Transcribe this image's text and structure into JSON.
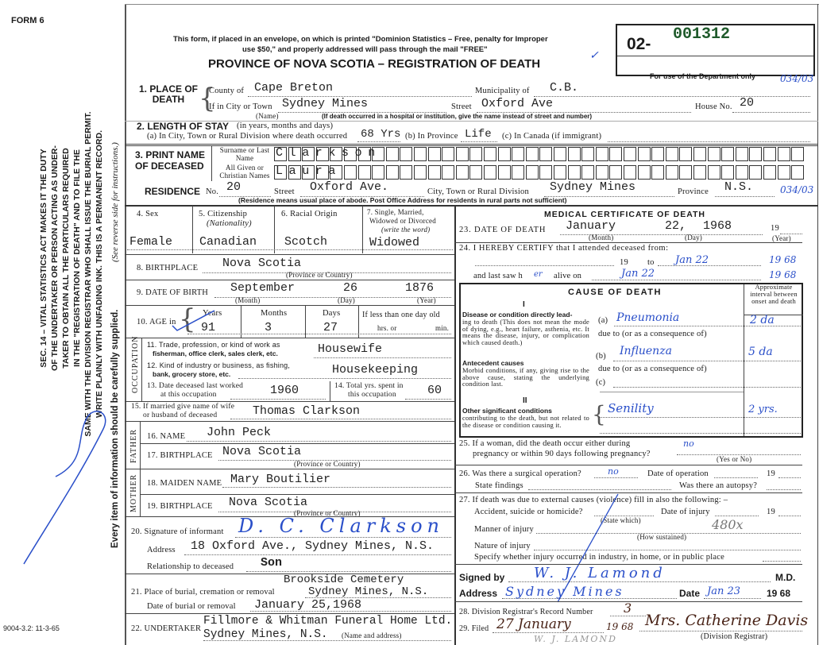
{
  "form_number": "FORM 6",
  "print_code": "9004-3.2: 11-3-65",
  "side_notice": {
    "lines": [
      "SEC. 14 – VITAL STATISTICS ACT MAKES IT THE DUTY",
      "OF THE UNDERTAKER OR PERSON ACTING AS UNDER-",
      "TAKER TO OBTAIN ALL THE PARTICULARS REQUIRED",
      "IN THE \"REGISTRATION OF DEATH\" AND TO FILE THE",
      "SAME WITH THE DIVISION REGISTRAR WHO SHALL ISSUE THE BURIAL PERMIT.",
      "WRITE PLAINLY WITH UNFADING INK. THIS IS A PERMANENT RECORD."
    ],
    "every_item": "Every item of information should be carefully supplied.",
    "see_reverse": "(See reverse side for instructions.)"
  },
  "header": {
    "mail_note_1": "This form, if placed in an envelope, on which is printed \"Dominion Statistics – Free, penalty for Improper",
    "mail_note_2": "use $50,\" and properly addressed will pass through the mail \"FREE\"",
    "title": "PROVINCE OF NOVA SCOTIA – REGISTRATION OF DEATH",
    "reg_prefix": "02-",
    "reg_number": "001312",
    "dept_only": "For use of the Department only",
    "dept_code_1": "034/03",
    "dept_code_2": "034/03"
  },
  "place_of_death": {
    "label": "1. PLACE OF DEATH",
    "county_label": "County of",
    "county": "Cape Breton",
    "municipality_label": "Municipality of",
    "municipality": "C.B.",
    "city_label": "If in City or Town",
    "city": "Sydney Mines",
    "name_note": "(Name)",
    "street_label": "Street",
    "street": "Oxford Ave",
    "house_label": "House No.",
    "house": "20",
    "hospital_note": "(If death occurred in a hospital or institution, give the name instead of street and number)"
  },
  "length_of_stay": {
    "label": "2. LENGTH OF STAY",
    "label_note": "(in years, months and days)",
    "a_label": "(a) In City, Town or Rural Division where death occurred",
    "a": "68 Yrs",
    "b_label": "(b) In Province",
    "b": "Life",
    "c_label": "(c) In Canada (if immigrant)",
    "c": ""
  },
  "deceased_name": {
    "label": "3. PRINT NAME OF DECEASED",
    "surname_label": "Surname or Last Name",
    "surname": "Clarkson",
    "given_label": "All Given or Christian Names",
    "given": "Laura"
  },
  "residence": {
    "label": "RESIDENCE",
    "no_label": "No.",
    "no": "20",
    "street_label": "Street",
    "street": "Oxford Ave.",
    "city_label": "City, Town or Rural Division",
    "city": "Sydney Mines",
    "province_label": "Province",
    "province": "N.S.",
    "note": "(Residence means usual place of abode. Post Office Address for residents in rural parts not sufficient)"
  },
  "personal": {
    "sex_label": "4. Sex",
    "sex": "Female",
    "citizenship_label": "5. Citizenship",
    "citizenship_sub": "(Nationality)",
    "citizenship": "Canadian",
    "racial_label": "6. Racial Origin",
    "racial": "Scotch",
    "marital_label_1": "7. Single, Married,",
    "marital_label_2": "Widowed or Divorced",
    "marital_label_3": "(write the word)",
    "marital": "Widowed",
    "birthplace_label": "8. BIRTHPLACE",
    "birthplace": "Nova Scotia",
    "province_or_country": "(Province or Country)",
    "dob_label": "9. DATE OF BIRTH",
    "dob_month": "September",
    "dob_day": "26",
    "dob_year": "1876",
    "month_note": "(Month)",
    "day_note": "(Day)",
    "year_note": "(Year)",
    "age_label": "10. AGE in",
    "years_label": "Years",
    "years": "91",
    "months_label": "Months",
    "months": "3",
    "days_label": "Days",
    "days": "27",
    "less_day_label": "If less than one day old",
    "hrs_label": "hrs. or",
    "min_label": "min."
  },
  "occupation": {
    "side_label": "OCCUPATION",
    "trade_label_1": "11. Trade, profession, or kind of work as",
    "trade_label_2": "fisherman, office clerk, sales clerk, etc.",
    "trade": "Housewife",
    "industry_label_1": "12. Kind of industry or business, as fishing,",
    "industry_label_2": "bank, grocery store, etc.",
    "industry": "Housekeeping",
    "last_worked_label_1": "13. Date deceased last worked",
    "last_worked_label_2": "at this occupation",
    "last_worked": "1960",
    "total_years_label_1": "14. Total yrs. spent in",
    "total_years_label_2": "this occupation",
    "total_years": "60"
  },
  "spouse": {
    "label_1": "15. If married give name of wife",
    "label_2": "or husband of deceased",
    "name": "Thomas Clarkson"
  },
  "father": {
    "side_label": "FATHER",
    "name_label": "16. NAME",
    "name": "John Peck",
    "birthplace_label": "17. BIRTHPLACE",
    "birthplace": "Nova Scotia",
    "note": "(Province or Country)"
  },
  "mother": {
    "side_label": "MOTHER",
    "maiden_label": "18. MAIDEN NAME",
    "maiden": "Mary Boutilier",
    "birthplace_label": "19. BIRTHPLACE",
    "birthplace": "Nova Scotia",
    "note": "(Province or Country)"
  },
  "informant": {
    "signature_label": "20. Signature of informant",
    "signature": "D. C. Clarkson",
    "address_label": "Address",
    "address": "18 Oxford Ave., Sydney Mines, N.S.",
    "relationship_label": "Relationship to deceased",
    "relationship": "Son"
  },
  "burial": {
    "place_label": "21. Place of burial, cremation or removal",
    "place_1": "Brookside Cemetery",
    "place_2": "Sydney Mines, N.S.",
    "date_label": "Date of burial or removal",
    "date": "January 25,1968"
  },
  "undertaker": {
    "label": "22. UNDERTAKER",
    "name": "Fillmore & Whitman Funeral Home Ltd.",
    "address": "Sydney Mines, N.S.",
    "note": "(Name and address)"
  },
  "medical": {
    "title": "MEDICAL CERTIFICATE OF DEATH",
    "date_label": "23. DATE OF DEATH",
    "date_month": "January",
    "date_day": "22,",
    "date_year": "1968",
    "nineteen": "19",
    "month_note": "(Month)",
    "day_note": "(Day)",
    "year_note": "(Year)",
    "certify_label": "24. I HEREBY CERTIFY that I attended deceased from:",
    "from_19": "19",
    "to_label": "to",
    "to_date": "Jan 22",
    "to_year": "19 68",
    "last_saw_label": "and last saw h",
    "last_saw_pronoun": "er",
    "alive_on_label": "alive on",
    "alive_on": "Jan 22",
    "alive_year": "19 68"
  },
  "cause": {
    "title": "CAUSE OF DEATH",
    "interval_header": "Approximate interval between onset and death",
    "part_1": "I",
    "direct_title": "Disease or condition directly lead-",
    "direct_text": "ing to death (This does not mean the mode of dying, e.g., heart failure, asthenia, etc. It means the disease, injury, or complication which caused death.)",
    "antecedent_title": "Antecedent causes",
    "antecedent_text": "Morbid conditions, if any, giving rise to the above cause, stating the underlying condition last.",
    "a_label": "(a)",
    "a": "Pneumonia",
    "a_interval": "2 da",
    "due_to_1": "due to (or as a consequence of)",
    "b_label": "(b)",
    "b": "Influenza",
    "b_interval": "5 da",
    "due_to_2": "due to (or as a consequence of)",
    "c_label": "(c)",
    "c": "",
    "part_2": "II",
    "other_title": "Other significant conditions",
    "other_text": "contributing to the death, but not related to the disease or condition causing it.",
    "other": "Senility",
    "other_interval": "2 yrs."
  },
  "pregnancy": {
    "label_1": "25. If a woman, did the death occur either during",
    "label_2": "pregnancy or within 90 days following pregnancy?",
    "value": "no",
    "note": "(Yes or No)"
  },
  "operation": {
    "label": "26. Was there a surgical operation?",
    "value": "no",
    "date_label": "Date of operation",
    "nineteen": "19",
    "findings_label": "State findings",
    "autopsy_label": "Was there an autopsy?"
  },
  "external": {
    "label": "27. If death was due to external causes (violence) fill in also the following: –",
    "accident_label": "Accident, suicide or homicide?",
    "state_which": "(State which)",
    "injury_date_label": "Date of injury",
    "nineteen": "19",
    "manner_label": "Manner of injury",
    "how_sustained": "(How sustained)",
    "nature_label": "Nature of injury",
    "specify_label": "Specify whether injury occurred in industry, in home, or in public place",
    "annotation": "480x"
  },
  "physician": {
    "signed_label": "Signed by",
    "signed": "W. J. Lamond",
    "md": "M.D.",
    "address_label": "Address",
    "address": "Sydney Mines",
    "date_label": "Date",
    "date": "Jan 23",
    "year": "19 68",
    "printed_name": "W. J. LAMOND"
  },
  "registrar": {
    "record_label": "28. Division Registrar's Record Number",
    "record": "3",
    "filed_label": "29. Filed",
    "filed": "27 January",
    "filed_year": "19 68",
    "signature": "Mrs. Catherine Davis",
    "registrar_note": "(Division Registrar)"
  }
}
